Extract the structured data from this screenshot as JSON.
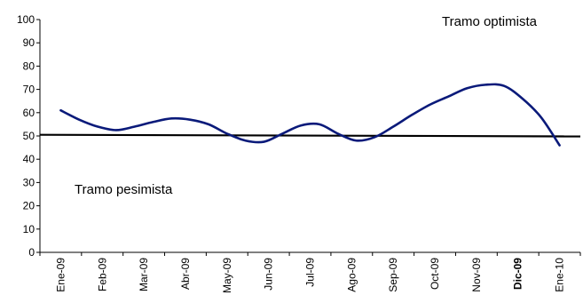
{
  "chart_data": {
    "type": "line",
    "title": "",
    "xlabel": "",
    "ylabel": "",
    "ylim": [
      0,
      100
    ],
    "yticks": [
      0,
      10,
      20,
      30,
      40,
      50,
      60,
      70,
      80,
      90,
      100
    ],
    "x_ticks": [
      "Ene-09",
      "Feb-09",
      "Mar-09",
      "Abr-09",
      "May-09",
      "Jun-09",
      "Jul-09",
      "Ago-09",
      "Sep-09",
      "Oct-09",
      "Nov-09",
      "Dic-09",
      "Ene-10"
    ],
    "x_tick_bold": "Dic-09",
    "grid": false,
    "legend": "none",
    "series": [
      {
        "color": "#0a1a7a",
        "values": [
          61,
          57,
          54,
          52.5,
          54,
          56,
          57.5,
          57,
          55,
          51,
          48,
          47.5,
          51,
          54.5,
          55,
          51,
          48,
          49.5,
          54,
          59,
          63.5,
          67,
          70.5,
          72,
          71.5,
          66,
          58,
          46
        ]
      }
    ],
    "reference_line": {
      "color": "#000000",
      "y_start": 50.5,
      "y_end": 49.8
    },
    "annotations": [
      {
        "text": "Tramo optimista",
        "position": "top-right"
      },
      {
        "text": "Tramo pesimista",
        "position": "lower-left"
      }
    ]
  }
}
